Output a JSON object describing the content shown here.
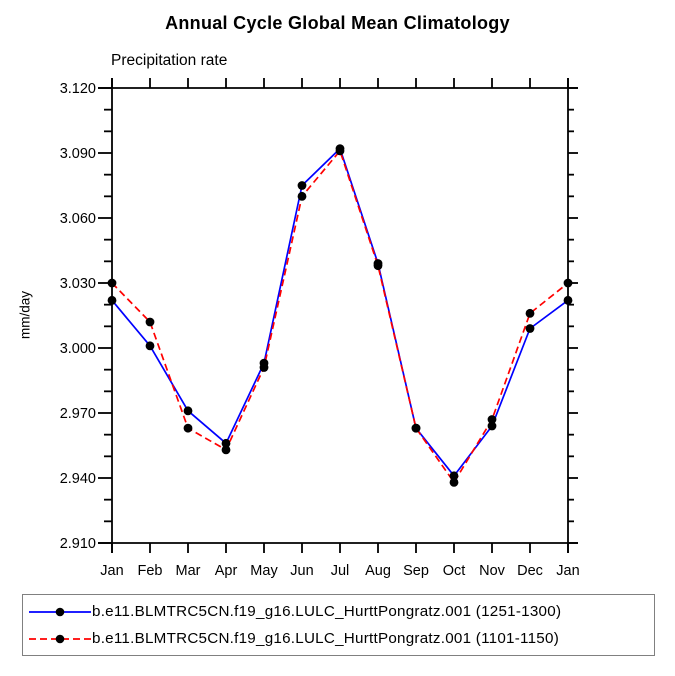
{
  "header": {
    "title": "Annual Cycle Global Mean Climatology",
    "subtitle": "Precipitation rate"
  },
  "chart_data": {
    "type": "line",
    "title": "Annual Cycle Global Mean Climatology",
    "subtitle": "Precipitation rate",
    "xlabel": "",
    "ylabel": "mm/day",
    "categories": [
      "Jan",
      "Feb",
      "Mar",
      "Apr",
      "May",
      "Jun",
      "Jul",
      "Aug",
      "Sep",
      "Oct",
      "Nov",
      "Dec",
      "Jan"
    ],
    "series": [
      {
        "name": "b.e11.BLMTRC5CN.f19_g16.LULC_HurttPongratz.001 (1251-1300)",
        "color": "#0000ff",
        "line_style": "solid",
        "marker": "circle",
        "marker_color": "#000000",
        "values": [
          3.022,
          3.001,
          2.971,
          2.956,
          2.993,
          3.075,
          3.092,
          3.039,
          2.963,
          2.941,
          2.964,
          3.009,
          3.022
        ]
      },
      {
        "name": "b.e11.BLMTRC5CN.f19_g16.LULC_HurttPongratz.001 (1101-1150)",
        "color": "#ff0000",
        "line_style": "dashed",
        "marker": "circle",
        "marker_color": "#000000",
        "values": [
          3.03,
          3.012,
          2.963,
          2.953,
          2.991,
          3.07,
          3.091,
          3.038,
          2.963,
          2.938,
          2.967,
          3.016,
          3.03
        ]
      }
    ],
    "ylim": [
      2.91,
      3.12
    ],
    "ytick_labels": [
      "2.910",
      "2.940",
      "2.970",
      "3.000",
      "3.030",
      "3.060",
      "3.090",
      "3.120"
    ],
    "y_minor_step": 0.01,
    "grid": false,
    "legend_position": "bottom",
    "axis_color": "#000000"
  },
  "legend": {
    "items": [
      {
        "label": "b.e11.BLMTRC5CN.f19_g16.LULC_HurttPongratz.001 (1251-1300)"
      },
      {
        "label": "b.e11.BLMTRC5CN.f19_g16.LULC_HurttPongratz.001 (1101-1150)"
      }
    ]
  },
  "colors": {
    "series_1": "#0000ff",
    "series_2": "#ff0000",
    "marker": "#000000",
    "axis": "#000000",
    "legend_border": "#808080"
  }
}
